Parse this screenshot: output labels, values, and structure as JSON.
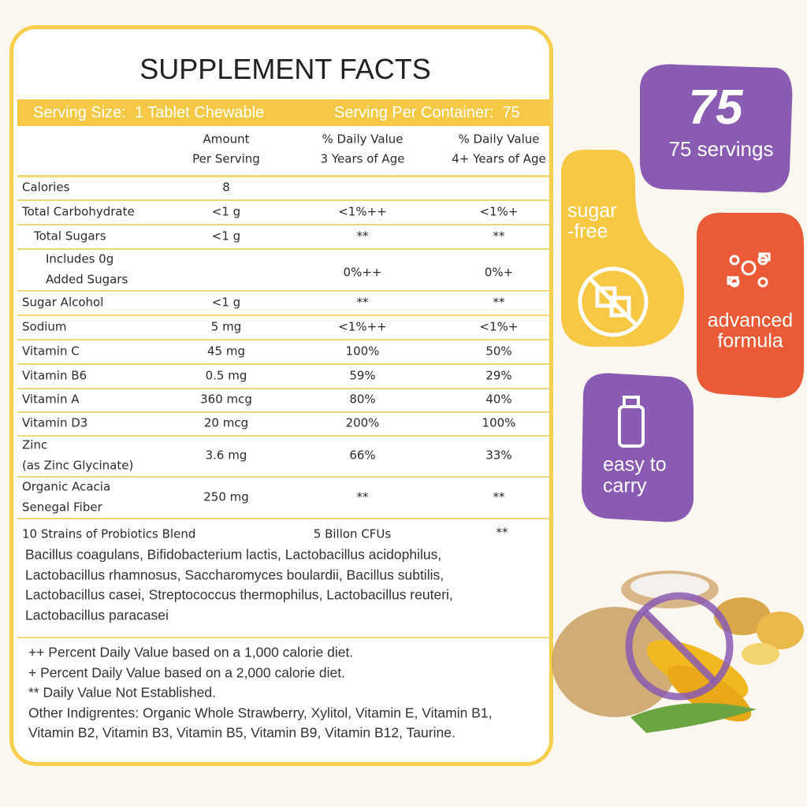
{
  "title": "SUPPLEMENT FACTS",
  "serving": {
    "size": "Serving Size:  1 Tablet Chewable",
    "per_container": "Serving Per Container:  75"
  },
  "table": {
    "header": [
      [
        "Amount",
        "Per Serving"
      ],
      [
        "% Daily Value",
        "3 Years of Age"
      ],
      [
        "% Daily Value",
        "4+ Years of Age"
      ]
    ],
    "rows": [
      {
        "name": [
          "Calories"
        ],
        "amount": "8",
        "dv3": "",
        "dv4": ""
      },
      {
        "name": [
          "Total Carbohydrate"
        ],
        "amount": "<1 g",
        "dv3": "<1%++",
        "dv4": "<1%+"
      },
      {
        "name": [
          "Total Sugars"
        ],
        "amount": "<1 g",
        "dv3": "**",
        "dv4": "**"
      },
      {
        "name": [
          "Includes 0g",
          "Added Sugars"
        ],
        "amount": "",
        "dv3": "0%++",
        "dv4": "0%+"
      },
      {
        "name": [
          "Sugar Alcohol"
        ],
        "amount": "<1 g",
        "dv3": "**",
        "dv4": "**"
      },
      {
        "name": [
          "Sodium"
        ],
        "amount": "5 mg",
        "dv3": "<1%++",
        "dv4": "<1%+"
      },
      {
        "name": [
          "Vitamin C"
        ],
        "amount": "45 mg",
        "dv3": "100%",
        "dv4": "50%"
      },
      {
        "name": [
          "Vitamin B6"
        ],
        "amount": "0.5 mg",
        "dv3": "59%",
        "dv4": "29%"
      },
      {
        "name": [
          "Vitamin A"
        ],
        "amount": "360 mcg",
        "dv3": "80%",
        "dv4": "40%"
      },
      {
        "name": [
          "Vitamin D3"
        ],
        "amount": "20 mcg",
        "dv3": "200%",
        "dv4": "100%"
      },
      {
        "name": [
          "Zinc",
          "(as Zinc Glycinate)"
        ],
        "amount": "3.6 mg",
        "dv3": "66%",
        "dv4": "33%"
      },
      {
        "name": [
          "Organic Acacia",
          "Senegal Fiber"
        ],
        "amount": "250 mg",
        "dv3": "**",
        "dv4": "**"
      }
    ]
  },
  "probiotics": {
    "name": "10 Strains of Probiotics Blend",
    "amount": "5 Billon CFUs",
    "dv": "**",
    "strains": [
      "Bacillus coagulans, Bifidobacterium lactis, Lactobacillus acidophilus,",
      "Lactobacillus rhamnosus, Saccharomyces boulardii, Bacillus subtilis,",
      "Lactobacillus casei, Streptococcus thermophilus, Lactobacillus reuteri,",
      "Lactobacillus paracasei"
    ]
  },
  "footnotes": [
    "++ Percent Daily Value based on a 1,000 calorie diet.",
    "+ Percent Daily Value based on a 2,000 calorie diet.",
    "** Daily Value Not Established.",
    "Other Indigrentes: Organic Whole Strawberry, Xylitol, Vitamin E, Vitamin B1,",
    "Vitamin B2, Vitamin B3, Vitamin B5, Vitamin B9, Vitamin B12, Taurine."
  ],
  "badges": {
    "servings": {
      "number": "75",
      "label": "75 servings"
    },
    "sugar_free": [
      "sugar",
      "-free"
    ],
    "formula": [
      "advanced",
      "formula"
    ],
    "carry": [
      "easy to",
      "carry"
    ]
  }
}
